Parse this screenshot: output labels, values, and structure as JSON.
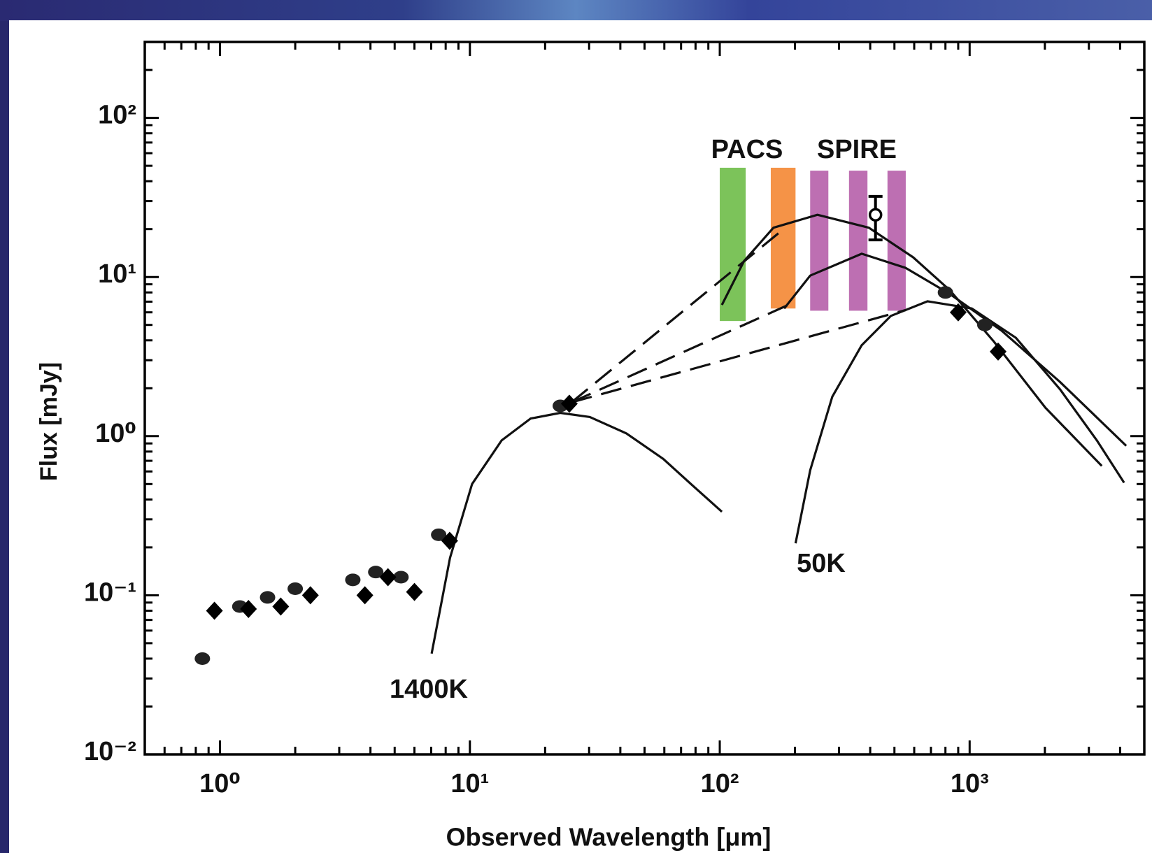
{
  "chart_data": {
    "type": "scatter",
    "xlabel": "Observed Wavelength [μm]",
    "ylabel": "Flux [mJy]",
    "xscale": "log",
    "yscale": "log",
    "xlim": [
      0.5,
      5000
    ],
    "ylim": [
      0.01,
      300
    ],
    "xticks": [
      {
        "value": 1,
        "label": "10⁰"
      },
      {
        "value": 10,
        "label": "10¹"
      },
      {
        "value": 100,
        "label": "10²"
      },
      {
        "value": 1000,
        "label": "10³"
      }
    ],
    "yticks": [
      {
        "value": 0.01,
        "label": "10⁻²"
      },
      {
        "value": 0.1,
        "label": "10⁻¹"
      },
      {
        "value": 1,
        "label": "10⁰"
      },
      {
        "value": 10,
        "label": "10¹"
      },
      {
        "value": 100,
        "label": "10²"
      }
    ],
    "xminorticks": [
      0.6,
      0.7,
      0.8,
      0.9,
      2,
      3,
      4,
      5,
      6,
      7,
      8,
      9,
      20,
      30,
      40,
      50,
      60,
      70,
      80,
      90,
      200,
      300,
      400,
      500,
      600,
      700,
      800,
      900,
      2000,
      3000,
      4000
    ],
    "yminorticks": [
      0.02,
      0.03,
      0.04,
      0.05,
      0.06,
      0.07,
      0.08,
      0.09,
      0.2,
      0.3,
      0.4,
      0.5,
      0.6,
      0.7,
      0.8,
      0.9,
      2,
      3,
      4,
      5,
      6,
      7,
      8,
      9,
      20,
      30,
      40,
      50,
      60,
      70,
      80,
      90,
      200
    ],
    "series": [
      {
        "marker": "circle",
        "color": "#222222",
        "x": [
          0.85,
          1.2,
          1.55,
          2.0,
          3.4,
          4.2,
          5.3,
          7.5,
          23,
          800,
          1150
        ],
        "y": [
          0.04,
          0.085,
          0.097,
          0.11,
          0.125,
          0.14,
          0.13,
          0.24,
          1.55,
          8,
          5
        ]
      },
      {
        "marker": "diamond",
        "color": "#000000",
        "x": [
          0.95,
          1.3,
          1.75,
          2.3,
          3.8,
          4.7,
          6.0,
          8.3,
          25,
          900,
          1300
        ],
        "y": [
          0.08,
          0.082,
          0.085,
          0.1,
          0.1,
          0.13,
          0.105,
          0.22,
          1.6,
          6,
          3.4
        ]
      },
      {
        "marker": "open-circle",
        "color": "#000000",
        "x": [
          420
        ],
        "y": [
          24.6
        ],
        "yerr": [
          7.5
        ]
      }
    ],
    "curves": [
      {
        "style": "solid",
        "color": "#111111",
        "x": [
          7.03,
          8.33,
          10.2,
          13.4,
          17.5,
          23.0,
          30.2,
          42.3,
          59.4,
          77.8,
          102
        ],
        "y": [
          0.043,
          0.172,
          0.5,
          0.94,
          1.29,
          1.4,
          1.32,
          1.04,
          0.72,
          0.49,
          0.335
        ]
      },
      {
        "style": "solid",
        "color": "#111111",
        "x": [
          201,
          230,
          282,
          370,
          484,
          679,
          1020,
          1530,
          2300,
          3230,
          4150
        ],
        "y": [
          0.212,
          0.61,
          1.77,
          3.73,
          5.7,
          7.04,
          6.34,
          4.15,
          1.97,
          0.94,
          0.51
        ]
      },
      {
        "style": "solid",
        "color": "#111111",
        "x": [
          102,
          125,
          164,
          246,
          395,
          594,
          833,
          1250,
          2010,
          3380
        ],
        "y": [
          6.68,
          12.6,
          20.4,
          24.6,
          20.4,
          13.3,
          8.26,
          3.93,
          1.51,
          0.65
        ]
      },
      {
        "style": "solid",
        "color": "#111111",
        "x": [
          181,
          230,
          370,
          555,
          833,
          1340,
          2300,
          4230
        ],
        "y": [
          6.34,
          10.2,
          14.0,
          11.4,
          7.83,
          4.61,
          2.19,
          0.87
        ]
      },
      {
        "style": "dashed",
        "color": "#111111",
        "x": [
          25.5,
          175
        ],
        "y": [
          1.63,
          19.3
        ]
      },
      {
        "style": "dashed",
        "color": "#111111",
        "x": [
          25.5,
          188
        ],
        "y": [
          1.63,
          6.68
        ]
      },
      {
        "style": "dashed",
        "color": "#111111",
        "x": [
          25.5,
          555
        ],
        "y": [
          1.63,
          6.2
        ]
      }
    ],
    "bands": [
      {
        "color": "#7cc35a",
        "xlim": [
          100,
          127
        ],
        "ylim": [
          5.29,
          48.6
        ]
      },
      {
        "color": "#f59347",
        "xlim": [
          160,
          201
        ],
        "ylim": [
          6.34,
          48.6
        ]
      },
      {
        "color": "#bd6fb2",
        "xlim": [
          230,
          272
        ],
        "ylim": [
          6.14,
          46.6
        ]
      },
      {
        "color": "#bd6fb2",
        "xlim": [
          329,
          390
        ],
        "ylim": [
          6.14,
          46.6
        ]
      },
      {
        "color": "#bd6fb2",
        "xlim": [
          469,
          555
        ],
        "ylim": [
          6.14,
          46.6
        ]
      }
    ],
    "annotations": [
      "PACS",
      "SPIRE",
      "1400K",
      "50K"
    ]
  }
}
